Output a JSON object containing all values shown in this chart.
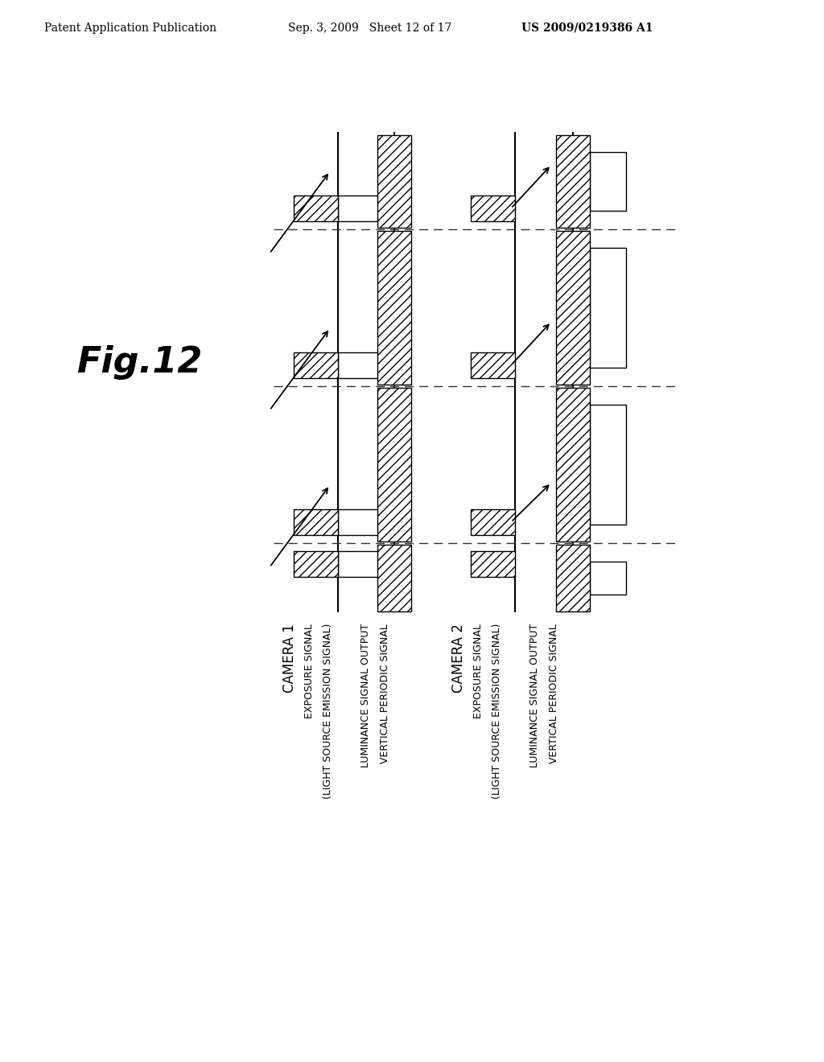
{
  "header_left": "Patent Application Publication",
  "header_mid": "Sep. 3, 2009   Sheet 12 of 17",
  "header_right": "US 2009/0219386 A1",
  "fig_label": "Fig.12",
  "background": "#ffffff",
  "cam1_label": "CAMERA 1",
  "cam1_line1": "EXPOSURE SIGNAL",
  "cam1_line2": "(LIGHT SOURCE EMISSION SIGNAL)",
  "cam1_line3": "LUMINANCE SIGNAL OUTPUT",
  "cam1_line4": "VERTICAL PERIODIC SIGNAL",
  "cam2_label": "CAMERA 2",
  "cam2_line1": "EXPOSURE SIGNAL",
  "cam2_line2": "(LIGHT SOURCE EMISSION SIGNAL)",
  "cam2_line3": "LUMINANCE SIGNAL OUTPUT",
  "cam2_line4": "VERTICAL PERIODIC SIGNAL",
  "dashed_line_color": "#555555",
  "hatch": "///",
  "line_color": "#000000"
}
